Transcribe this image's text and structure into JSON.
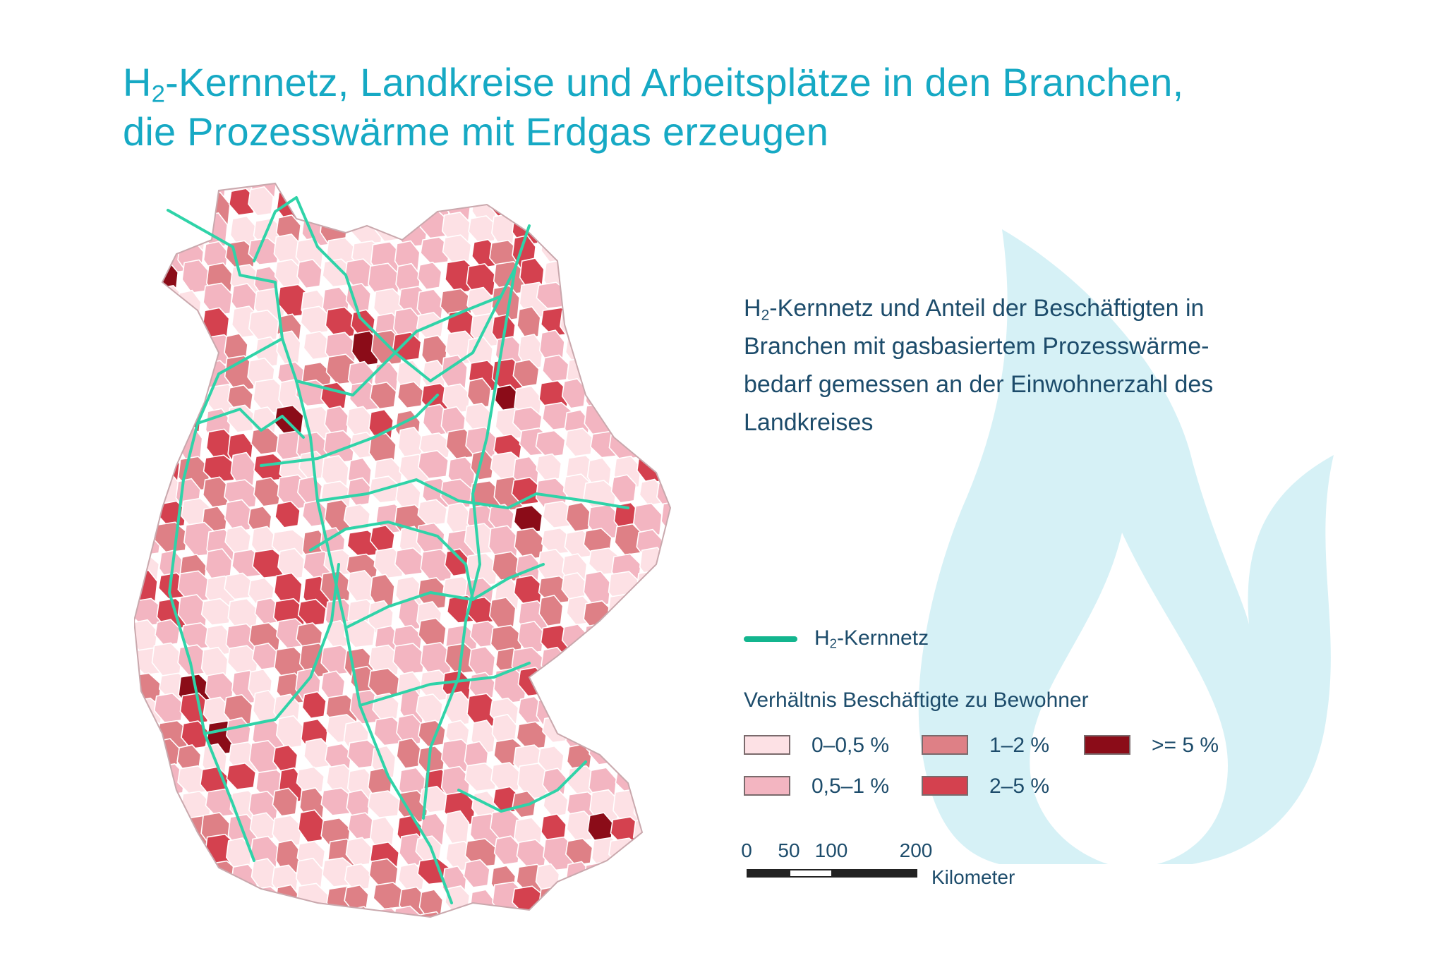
{
  "title": {
    "line1_pre": "H",
    "line1_sub": "2",
    "line1_post": "-Kernnetz, Landkreise und Arbeitsplätze in den Branchen,",
    "line2": "die Prozesswärme mit Erdgas erzeugen"
  },
  "description": {
    "pre": "H",
    "sub": "2",
    "line1": "-Kernnetz und Anteil der Beschäftigten in",
    "line2": "Branchen mit gasbasiertem Prozesswärme-",
    "line3": "bedarf gemessen an der Einwohnerzahl des",
    "line4": "Landkreises"
  },
  "legend": {
    "network": {
      "pre": "H",
      "sub": "2",
      "post": "-Kernnetz",
      "color": "#13b58e"
    },
    "ratio_title": "Verhältnis Beschäftigte zu Bewohner",
    "classes": [
      {
        "label": "0–0,5 %",
        "color": "#fde1e5"
      },
      {
        "label": "0,5–1 %",
        "color": "#f3b5c1"
      },
      {
        "label": "1–2 %",
        "color": "#de8086"
      },
      {
        "label": "2–5 %",
        "color": "#d4414f"
      },
      {
        "label": ">= 5 %",
        "color": "#8b0c18"
      }
    ]
  },
  "scale_bar": {
    "ticks": [
      "0",
      "50",
      "100",
      "200"
    ],
    "unit": "Kilometer"
  },
  "colors": {
    "title": "#16a9c4",
    "text": "#1d4c6b",
    "flame": "#d6f1f6",
    "district_border": "#ffffff"
  }
}
